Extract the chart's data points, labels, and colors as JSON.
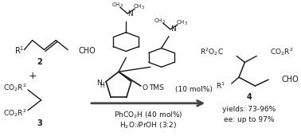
{
  "bg_color": "#ffffff",
  "fig_width": 3.78,
  "fig_height": 1.76,
  "dpi": 100,
  "text_color": "#1a1a1a",
  "bond_color": "#1a1a1a",
  "arrow_color": "#444444",
  "condition1": "PhCO$_2$H (40 mol%)",
  "condition2": "H$_2$O:$i$PrOH (3:2)",
  "catalyst_mol": "(10 mol%)",
  "product_yield": "yields: 73-96%",
  "product_ee": "ee: up to 97%"
}
